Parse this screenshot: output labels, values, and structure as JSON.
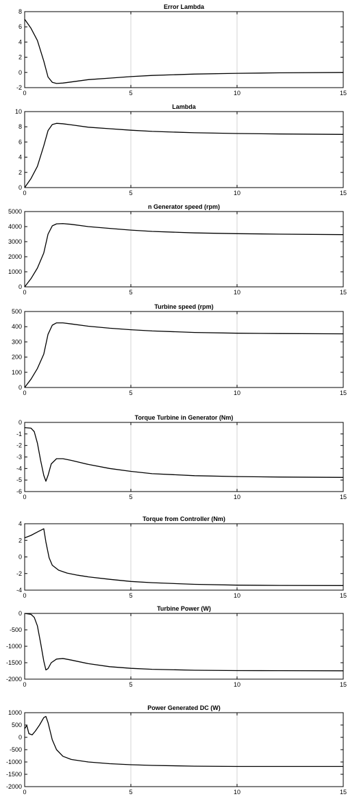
{
  "chart_data": [
    {
      "type": "line",
      "title": "Error Lambda",
      "xlim": [
        0,
        15
      ],
      "ylim": [
        -2,
        8
      ],
      "xticks": [
        0,
        5,
        10,
        15
      ],
      "yticks": [
        -2,
        0,
        2,
        4,
        6,
        8
      ],
      "grid": "x-only",
      "series": [
        {
          "x": [
            0,
            0.3,
            0.6,
            0.9,
            1.1,
            1.3,
            1.5,
            1.8,
            2.2,
            3,
            4,
            5,
            6,
            8,
            10,
            12,
            15
          ],
          "values": [
            7.0,
            5.8,
            4.2,
            1.5,
            -0.6,
            -1.3,
            -1.45,
            -1.4,
            -1.25,
            -0.95,
            -0.75,
            -0.55,
            -0.4,
            -0.22,
            -0.12,
            -0.05,
            0.0
          ]
        }
      ]
    },
    {
      "type": "line",
      "title": "Lambda",
      "xlim": [
        0,
        15
      ],
      "ylim": [
        0,
        10
      ],
      "xticks": [
        0,
        5,
        10,
        15
      ],
      "yticks": [
        0,
        2,
        4,
        6,
        8,
        10
      ],
      "grid": "x-only",
      "series": [
        {
          "x": [
            0,
            0.3,
            0.6,
            0.9,
            1.1,
            1.3,
            1.5,
            1.8,
            2.2,
            3,
            4,
            5,
            6,
            8,
            10,
            12,
            15
          ],
          "values": [
            0,
            1.2,
            2.8,
            5.5,
            7.5,
            8.3,
            8.45,
            8.4,
            8.25,
            7.95,
            7.75,
            7.55,
            7.4,
            7.22,
            7.12,
            7.05,
            7.0
          ]
        }
      ]
    },
    {
      "type": "line",
      "title": "n Generator speed (rpm)",
      "xlim": [
        0,
        15
      ],
      "ylim": [
        0,
        5000
      ],
      "xticks": [
        0,
        5,
        10,
        15
      ],
      "yticks": [
        0,
        1000,
        2000,
        3000,
        4000,
        5000
      ],
      "grid": "x-only",
      "series": [
        {
          "x": [
            0,
            0.3,
            0.6,
            0.9,
            1.1,
            1.3,
            1.5,
            1.8,
            2.2,
            3,
            4,
            5,
            6,
            8,
            10,
            12,
            15
          ],
          "values": [
            0,
            550,
            1250,
            2250,
            3500,
            4050,
            4180,
            4200,
            4150,
            4000,
            3880,
            3770,
            3680,
            3580,
            3530,
            3500,
            3470
          ]
        }
      ]
    },
    {
      "type": "line",
      "title": "Turbine speed (rpm)",
      "xlim": [
        0,
        15
      ],
      "ylim": [
        0,
        500
      ],
      "xticks": [
        0,
        5,
        10,
        15
      ],
      "yticks": [
        0,
        100,
        200,
        300,
        400,
        500
      ],
      "grid": "x-only",
      "series": [
        {
          "x": [
            0,
            0.3,
            0.6,
            0.9,
            1.1,
            1.3,
            1.5,
            1.8,
            2.2,
            3,
            4,
            5,
            6,
            8,
            10,
            12,
            15
          ],
          "values": [
            0,
            55,
            125,
            220,
            350,
            410,
            425,
            425,
            418,
            403,
            390,
            380,
            372,
            362,
            357,
            355,
            353
          ]
        }
      ]
    },
    {
      "type": "line",
      "title": "Torque Turbine in Generator  (Nm)",
      "xlim": [
        0,
        15
      ],
      "ylim": [
        -6,
        0
      ],
      "xticks": [
        0,
        5,
        10,
        15
      ],
      "yticks": [
        -6,
        -5,
        -4,
        -3,
        -2,
        -1,
        0
      ],
      "grid": "x-only",
      "series": [
        {
          "x": [
            0,
            0.3,
            0.45,
            0.6,
            0.75,
            0.9,
            1.0,
            1.1,
            1.25,
            1.5,
            1.8,
            2.2,
            3,
            4,
            5,
            6,
            8,
            10,
            12,
            15
          ],
          "values": [
            -0.45,
            -0.5,
            -0.8,
            -1.8,
            -3.3,
            -4.6,
            -5.1,
            -4.6,
            -3.6,
            -3.15,
            -3.15,
            -3.3,
            -3.65,
            -4.0,
            -4.25,
            -4.45,
            -4.62,
            -4.7,
            -4.74,
            -4.77
          ]
        }
      ]
    },
    {
      "type": "line",
      "title": "Torque from Controller (Nm)",
      "xlim": [
        0,
        15
      ],
      "ylim": [
        -4,
        4
      ],
      "xticks": [
        0,
        5,
        10,
        15
      ],
      "yticks": [
        -4,
        -2,
        0,
        2,
        4
      ],
      "grid": "x-only",
      "series": [
        {
          "x": [
            0,
            0.3,
            0.6,
            0.9,
            1.0,
            1.15,
            1.3,
            1.6,
            2.0,
            2.5,
            3,
            4,
            5,
            6,
            8,
            10,
            12,
            15
          ],
          "values": [
            2.3,
            2.6,
            3.0,
            3.4,
            1.8,
            -0.1,
            -1.0,
            -1.6,
            -1.95,
            -2.2,
            -2.4,
            -2.7,
            -2.95,
            -3.1,
            -3.3,
            -3.4,
            -3.43,
            -3.45
          ]
        }
      ]
    },
    {
      "type": "line",
      "title": "Turbine Power (W)",
      "xlim": [
        0,
        15
      ],
      "ylim": [
        -2000,
        0
      ],
      "xticks": [
        0,
        5,
        10,
        15
      ],
      "yticks": [
        -2000,
        -1500,
        -1000,
        -500,
        0
      ],
      "grid": "x-only",
      "series": [
        {
          "x": [
            0,
            0.3,
            0.45,
            0.6,
            0.75,
            0.9,
            1.0,
            1.1,
            1.25,
            1.5,
            1.8,
            2.2,
            3,
            4,
            5,
            6,
            8,
            10,
            12,
            15
          ],
          "values": [
            0,
            -30,
            -120,
            -380,
            -900,
            -1450,
            -1720,
            -1680,
            -1500,
            -1390,
            -1370,
            -1420,
            -1530,
            -1620,
            -1670,
            -1700,
            -1730,
            -1740,
            -1742,
            -1745
          ]
        }
      ]
    },
    {
      "type": "line",
      "title": "Power Generated DC (W)",
      "xlim": [
        0,
        15
      ],
      "ylim": [
        -2000,
        1000
      ],
      "xticks": [
        0,
        5,
        10,
        15
      ],
      "yticks": [
        -2000,
        -1500,
        -1000,
        -500,
        0,
        500,
        1000
      ],
      "grid": "x-only",
      "series": [
        {
          "x": [
            0,
            0.1,
            0.2,
            0.35,
            0.5,
            0.7,
            0.9,
            1.0,
            1.1,
            1.3,
            1.5,
            1.8,
            2.2,
            3,
            4,
            5,
            6,
            8,
            10,
            12,
            15
          ],
          "values": [
            350,
            480,
            150,
            100,
            250,
            500,
            800,
            850,
            600,
            -100,
            -500,
            -770,
            -900,
            -1000,
            -1070,
            -1110,
            -1140,
            -1170,
            -1180,
            -1180,
            -1180
          ]
        }
      ]
    }
  ]
}
